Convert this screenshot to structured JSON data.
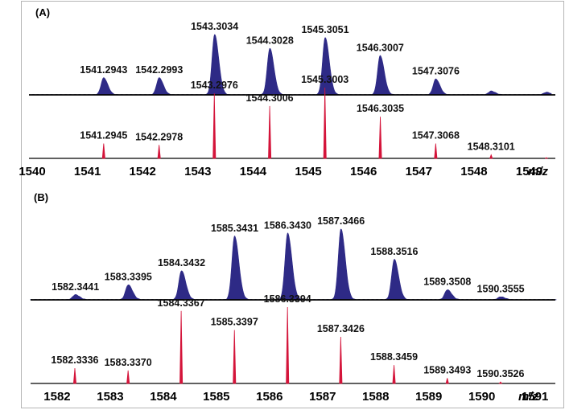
{
  "chart_data": [
    {
      "type": "line",
      "panel_label": "(A)",
      "x_unit_label": "m/z",
      "xlim": [
        1540,
        1549.4
      ],
      "x_ticks": [
        "1540",
        "1541",
        "1542",
        "1543",
        "1544",
        "1545",
        "1546",
        "1547",
        "1548",
        "1549"
      ],
      "series": [
        {
          "style": "filled",
          "color": "#2e2a86",
          "peaks": [
            {
              "x": 1541.2943,
              "y": 28,
              "label": "1541.2943"
            },
            {
              "x": 1542.2993,
              "y": 28,
              "label": "1542.2993"
            },
            {
              "x": 1543.3034,
              "y": 100,
              "label": "1543.3034"
            },
            {
              "x": 1544.3028,
              "y": 77,
              "label": "1544.3028"
            },
            {
              "x": 1545.3051,
              "y": 95,
              "label": "1545.3051"
            },
            {
              "x": 1546.3007,
              "y": 65,
              "label": "1546.3007"
            },
            {
              "x": 1547.3076,
              "y": 26,
              "label": "1547.3076"
            },
            {
              "x": 1548.31,
              "y": 6,
              "label": ""
            },
            {
              "x": 1549.31,
              "y": 4,
              "label": ""
            }
          ]
        },
        {
          "style": "stick",
          "color": "#d4143a",
          "peaks": [
            {
              "x": 1541.2945,
              "y": 21,
              "label": "1541.2945"
            },
            {
              "x": 1542.2978,
              "y": 19,
              "label": "1542.2978"
            },
            {
              "x": 1543.2976,
              "y": 92,
              "label": "1543.2976"
            },
            {
              "x": 1544.3006,
              "y": 74,
              "label": "1544.3006"
            },
            {
              "x": 1545.3003,
              "y": 100,
              "label": "1545.3003"
            },
            {
              "x": 1546.3035,
              "y": 59,
              "label": "1546.3035"
            },
            {
              "x": 1547.3068,
              "y": 21,
              "label": "1547.3068"
            },
            {
              "x": 1548.3101,
              "y": 5,
              "label": "1548.3101"
            },
            {
              "x": 1549.31,
              "y": 1,
              "label": ""
            }
          ]
        }
      ]
    },
    {
      "type": "line",
      "panel_label": "(B)",
      "x_unit_label": "m/z",
      "xlim": [
        1581.5,
        1591.4
      ],
      "x_ticks": [
        "1582",
        "1583",
        "1584",
        "1585",
        "1586",
        "1587",
        "1588",
        "1589",
        "1590",
        "1591"
      ],
      "series": [
        {
          "style": "filled",
          "color": "#2e2a86",
          "peaks": [
            {
              "x": 1582.3441,
              "y": 7,
              "label": "1582.3441"
            },
            {
              "x": 1583.3395,
              "y": 21,
              "label": "1583.3395"
            },
            {
              "x": 1584.3432,
              "y": 41,
              "label": "1584.3432"
            },
            {
              "x": 1585.3431,
              "y": 90,
              "label": "1585.3431"
            },
            {
              "x": 1586.343,
              "y": 94,
              "label": "1586.3430"
            },
            {
              "x": 1587.3466,
              "y": 100,
              "label": "1587.3466"
            },
            {
              "x": 1588.3516,
              "y": 57,
              "label": "1588.3516"
            },
            {
              "x": 1589.3508,
              "y": 14,
              "label": "1589.3508"
            },
            {
              "x": 1590.3555,
              "y": 4,
              "label": "1590.3555"
            }
          ]
        },
        {
          "style": "stick",
          "color": "#d4143a",
          "peaks": [
            {
              "x": 1582.3336,
              "y": 20,
              "label": "1582.3336"
            },
            {
              "x": 1583.337,
              "y": 17,
              "label": "1583.3370"
            },
            {
              "x": 1584.3367,
              "y": 95,
              "label": "1584.3367"
            },
            {
              "x": 1585.3397,
              "y": 70,
              "label": "1585.3397"
            },
            {
              "x": 1586.3394,
              "y": 100,
              "label": "1586.3394"
            },
            {
              "x": 1587.3426,
              "y": 61,
              "label": "1587.3426"
            },
            {
              "x": 1588.3459,
              "y": 24,
              "label": "1588.3459"
            },
            {
              "x": 1589.3493,
              "y": 7,
              "label": "1589.3493"
            },
            {
              "x": 1590.3526,
              "y": 2,
              "label": "1590.3526"
            }
          ]
        }
      ]
    }
  ]
}
